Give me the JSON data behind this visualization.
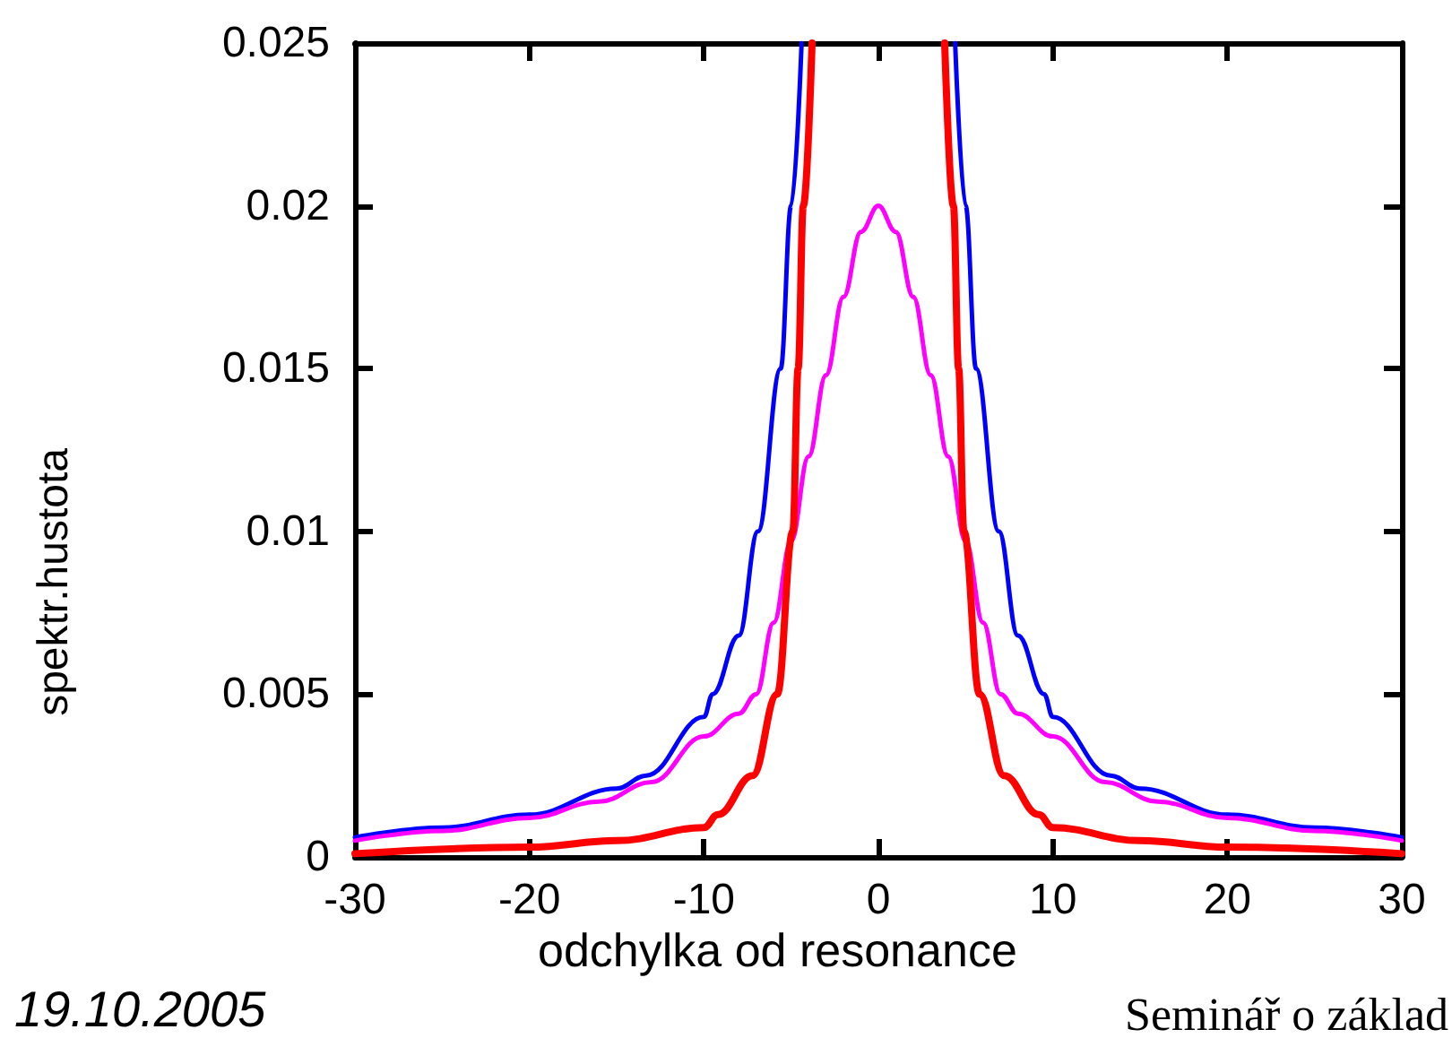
{
  "chart_data": {
    "type": "line",
    "xlabel": "odchylka od resonance",
    "ylabel": "spektr.hustota",
    "annotations": [
      "19.10.2005",
      "Seminář o základ"
    ],
    "series": [
      {
        "color": "#0000ff",
        "x": [
          -30,
          -25,
          -20,
          -15,
          -13.3,
          -10,
          -9.5,
          -8,
          -6.9,
          -5.6,
          -5,
          -4.4,
          0,
          4.4,
          5,
          5.6,
          6.9,
          8,
          9.5,
          10,
          13.3,
          15,
          20,
          25,
          30
        ],
        "values": [
          0.0006,
          0.0009,
          0.0013,
          0.0021,
          0.0025,
          0.0043,
          0.005,
          0.0068,
          0.01,
          0.015,
          0.02,
          0.025,
          null,
          0.025,
          0.02,
          0.015,
          0.01,
          0.0068,
          0.005,
          0.0043,
          0.0025,
          0.0021,
          0.0013,
          0.0009,
          0.0006
        ]
      },
      {
        "color": "#ff00ff",
        "x": [
          -30,
          -25,
          -20,
          -16,
          -13,
          -10,
          -8,
          -7,
          -6,
          -5,
          -4,
          -3,
          -2,
          -1,
          0,
          1,
          2,
          3,
          4,
          5,
          6,
          7,
          8,
          10,
          13,
          16,
          20,
          25,
          30
        ],
        "values": [
          0.0005,
          0.0008,
          0.0012,
          0.0017,
          0.0023,
          0.0037,
          0.0044,
          0.005,
          0.0072,
          0.0097,
          0.0123,
          0.0148,
          0.0172,
          0.0192,
          0.02,
          0.0192,
          0.0172,
          0.0148,
          0.0123,
          0.0097,
          0.0072,
          0.005,
          0.0044,
          0.0037,
          0.0023,
          0.0017,
          0.0012,
          0.0008,
          0.0005
        ]
      },
      {
        "color": "#ff0000",
        "x": [
          -30,
          -20,
          -15,
          -10,
          -9.2,
          -7.2,
          -5.8,
          -4.9,
          -4.6,
          -4.3,
          -3.8,
          0,
          3.8,
          4.3,
          4.6,
          4.9,
          5.8,
          7.2,
          9.2,
          10,
          15,
          20,
          30
        ],
        "values": [
          0.0001,
          0.0003,
          0.0005,
          0.0009,
          0.0013,
          0.0025,
          0.005,
          0.01,
          0.015,
          0.02,
          0.025,
          null,
          0.025,
          0.02,
          0.015,
          0.01,
          0.005,
          0.0025,
          0.0013,
          0.0009,
          0.0005,
          0.0003,
          0.0001
        ]
      }
    ],
    "xlim": [
      -30,
      30
    ],
    "xticks": [
      -30,
      -20,
      -10,
      0,
      10,
      20,
      30
    ],
    "ylim": [
      0,
      0.025
    ],
    "yticks": [
      0,
      0.005,
      0.01,
      0.015,
      0.02,
      0.025
    ],
    "grid": false,
    "marker": "none",
    "line_style": "solid"
  }
}
